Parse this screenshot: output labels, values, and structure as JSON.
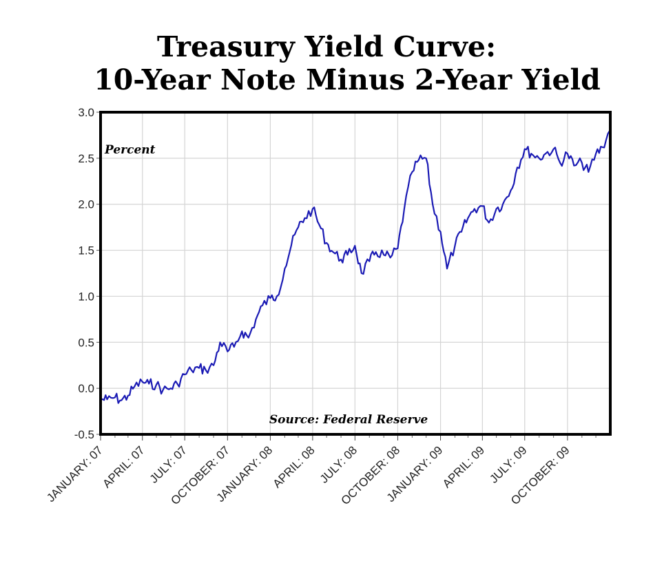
{
  "chart_data": {
    "type": "line",
    "title": "Treasury Yield Curve:",
    "subtitle": "10-Year Note Minus 2-Year Yield",
    "ylabel": "Percent",
    "source": "Source: Federal Reserve",
    "ylim": [
      -0.5,
      3.0
    ],
    "y_ticks": [
      "3.0",
      "2.5",
      "2.0",
      "1.5",
      "1.0",
      "0.5",
      "0.0",
      "-0.5"
    ],
    "y_tick_values": [
      3.0,
      2.5,
      2.0,
      1.5,
      1.0,
      0.5,
      0.0,
      -0.5
    ],
    "x_ticks": [
      "JANUARY: 07",
      "APRIL: 07",
      "JULY: 07",
      "OCTOBER: 07",
      "JANUARY: 08",
      "APRIL: 08",
      "JULY: 08",
      "OCTOBER: 08",
      "JANUARY: 09",
      "APRIL: 09",
      "JULY: 09",
      "OCTOBER: 09"
    ],
    "x_tick_values": [
      "2007-01",
      "2007-04",
      "2007-07",
      "2007-10",
      "2008-01",
      "2008-04",
      "2008-07",
      "2008-10",
      "2009-01",
      "2009-04",
      "2009-07",
      "2009-10"
    ],
    "xlim": [
      "2007-01",
      "2009-12"
    ],
    "grid": true,
    "line_color": "#1a1ab4",
    "series": [
      {
        "x": [
          "2007-01-02",
          "2007-01-15",
          "2007-02-01",
          "2007-02-15",
          "2007-03-01",
          "2007-03-15",
          "2007-04-01",
          "2007-04-15",
          "2007-05-01",
          "2007-05-15",
          "2007-06-01",
          "2007-06-15",
          "2007-07-01",
          "2007-07-15",
          "2007-08-01",
          "2007-08-15",
          "2007-09-01",
          "2007-09-15",
          "2007-10-01",
          "2007-10-15",
          "2007-11-01",
          "2007-11-15",
          "2007-12-01",
          "2007-12-15",
          "2008-01-01",
          "2008-01-15",
          "2008-02-01",
          "2008-02-15",
          "2008-03-01",
          "2008-03-15",
          "2008-04-01",
          "2008-04-15",
          "2008-05-01",
          "2008-05-15",
          "2008-06-01",
          "2008-06-15",
          "2008-07-01",
          "2008-07-15",
          "2008-08-01",
          "2008-08-15",
          "2008-09-01",
          "2008-09-15",
          "2008-10-01",
          "2008-10-15",
          "2008-11-01",
          "2008-11-15",
          "2008-12-01",
          "2008-12-15",
          "2009-01-01",
          "2009-01-15",
          "2009-02-01",
          "2009-02-15",
          "2009-03-01",
          "2009-03-15",
          "2009-04-01",
          "2009-04-15",
          "2009-05-01",
          "2009-05-15",
          "2009-06-01",
          "2009-06-15",
          "2009-07-01",
          "2009-07-15",
          "2009-08-01",
          "2009-08-15",
          "2009-09-01",
          "2009-09-15",
          "2009-10-01",
          "2009-10-15",
          "2009-11-01",
          "2009-11-15",
          "2009-12-01",
          "2009-12-15",
          "2009-12-31"
        ],
        "values": [
          -0.12,
          -0.12,
          -0.1,
          -0.13,
          -0.08,
          0.02,
          0.07,
          0.05,
          0.04,
          -0.02,
          0.0,
          0.05,
          0.15,
          0.2,
          0.22,
          0.2,
          0.25,
          0.5,
          0.4,
          0.45,
          0.62,
          0.55,
          0.75,
          0.9,
          0.98,
          1.0,
          1.3,
          1.55,
          1.75,
          1.85,
          1.95,
          1.78,
          1.58,
          1.48,
          1.4,
          1.45,
          1.55,
          1.25,
          1.38,
          1.48,
          1.45,
          1.42,
          1.52,
          1.95,
          2.35,
          2.48,
          2.5,
          2.0,
          1.7,
          1.3,
          1.55,
          1.7,
          1.85,
          1.95,
          1.98,
          1.8,
          1.95,
          2.0,
          2.15,
          2.4,
          2.6,
          2.55,
          2.5,
          2.55,
          2.6,
          2.45,
          2.55,
          2.42,
          2.45,
          2.35,
          2.55,
          2.62,
          2.8
        ]
      }
    ]
  }
}
